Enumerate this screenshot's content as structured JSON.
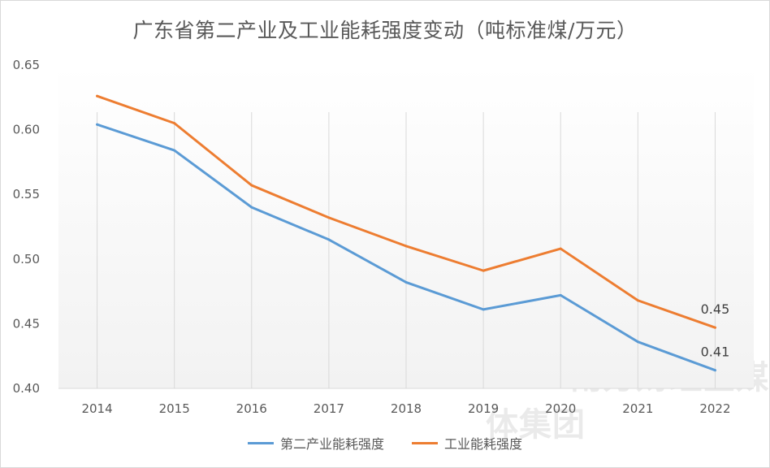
{
  "chart_data": {
    "type": "line",
    "title": "广东省第二产业及工业能耗强度变动（吨标准煤/万元）",
    "categories": [
      "2014",
      "2015",
      "2016",
      "2017",
      "2018",
      "2019",
      "2020",
      "2021",
      "2022"
    ],
    "ylim": [
      0.4,
      0.65
    ],
    "yticks": [
      "0.40",
      "0.45",
      "0.50",
      "0.55",
      "0.60",
      "0.65"
    ],
    "ytick_values": [
      0.4,
      0.45,
      0.5,
      0.55,
      0.6,
      0.65
    ],
    "grid": "vertical",
    "legend": "bottom",
    "series": [
      {
        "name": "第二产业能耗强度",
        "color": "#5b9bd5",
        "values": [
          0.604,
          0.584,
          0.54,
          0.515,
          0.482,
          0.461,
          0.472,
          0.436,
          0.414
        ],
        "end_label": "0.41"
      },
      {
        "name": "工业能耗强度",
        "color": "#ed7d31",
        "values": [
          0.626,
          0.605,
          0.557,
          0.532,
          0.51,
          0.491,
          0.508,
          0.468,
          0.447
        ],
        "end_label": "0.45"
      }
    ]
  },
  "watermark": "SFC 南方财经全媒体集团"
}
